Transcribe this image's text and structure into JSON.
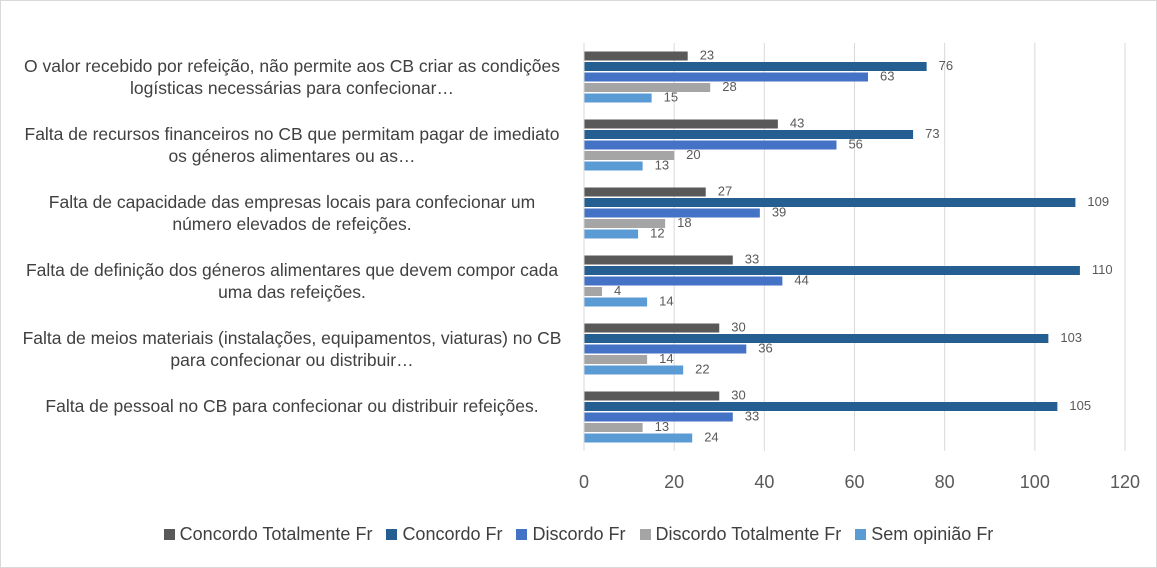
{
  "chart_data": {
    "type": "bar",
    "orientation": "horizontal",
    "categories": [
      "O valor recebido por refeição, não permite aos CB criar as condições logísticas necessárias para confecionar…",
      "Falta de recursos financeiros no CB que permitam pagar de imediato os géneros alimentares ou as…",
      "Falta de capacidade das empresas locais para confecionar um número elevados de refeições.",
      "Falta de definição dos géneros alimentares que devem compor cada uma das refeições.",
      "Falta de meios materiais (instalações, equipamentos, viaturas) no CB para confecionar ou distribuir…",
      "Falta de pessoal no CB para confecionar ou distribuir refeições."
    ],
    "series": [
      {
        "name": "Concordo Totalmente Fr",
        "color": "#595959",
        "values": [
          23,
          43,
          27,
          33,
          30,
          30
        ]
      },
      {
        "name": "Concordo Fr",
        "color": "#255e91",
        "values": [
          76,
          73,
          109,
          110,
          103,
          105
        ]
      },
      {
        "name": "Discordo Fr",
        "color": "#4472c4",
        "values": [
          63,
          56,
          39,
          44,
          36,
          33
        ]
      },
      {
        "name": "Discordo Totalmente Fr",
        "color": "#a5a5a5",
        "values": [
          28,
          20,
          18,
          4,
          14,
          13
        ]
      },
      {
        "name": "Sem opinião Fr",
        "color": "#5b9bd5",
        "values": [
          15,
          13,
          12,
          14,
          22,
          24
        ]
      }
    ],
    "xlim": [
      0,
      120
    ],
    "xticks": [
      0,
      20,
      40,
      60,
      80,
      100,
      120
    ],
    "grid": true,
    "legend": "bottom"
  }
}
